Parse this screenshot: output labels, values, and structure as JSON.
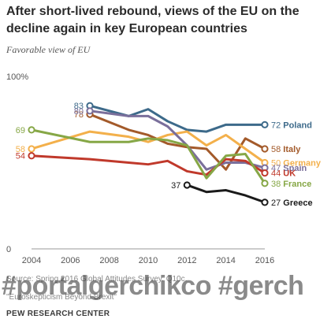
{
  "header": {
    "title": "After short-lived rebound, views of the EU on the decline again in key European countries",
    "subtitle": "Favorable view of EU"
  },
  "footer": {
    "source": "Source: Spring 2016 Global Attitudes Survey. Q10c.",
    "note": "\"Euroskepticism Beyond Brexit\"",
    "watermark": "#portalgerchikco #gerch",
    "org": "PEW RESEARCH CENTER"
  },
  "chart_data": {
    "type": "line",
    "ylim": [
      0,
      100
    ],
    "xlim": [
      2004,
      2016
    ],
    "y_tick_labels": [
      "0",
      "100%"
    ],
    "y_ticks": [
      0,
      100
    ],
    "x_ticks": [
      2004,
      2006,
      2008,
      2010,
      2012,
      2014,
      2016
    ],
    "grid": false,
    "series": [
      {
        "name": "Poland",
        "color": "#3d6a8a",
        "bold_label": true,
        "start_label": "83",
        "end_label": "72",
        "points": [
          [
            2007,
            83
          ],
          [
            2009,
            77
          ],
          [
            2010,
            81
          ],
          [
            2011,
            74
          ],
          [
            2012,
            69
          ],
          [
            2013,
            68
          ],
          [
            2014,
            72
          ],
          [
            2015,
            72
          ],
          [
            2016,
            72
          ]
        ]
      },
      {
        "name": "Italy",
        "color": "#a35a2a",
        "bold_label": false,
        "start_label": "78",
        "end_label": "58",
        "points": [
          [
            2007,
            78
          ],
          [
            2009,
            69
          ],
          [
            2010,
            66
          ],
          [
            2011,
            61
          ],
          [
            2012,
            59
          ],
          [
            2013,
            58
          ],
          [
            2014,
            46
          ],
          [
            2015,
            64
          ],
          [
            2016,
            58
          ]
        ]
      },
      {
        "name": "Germany",
        "color": "#f3b04b",
        "bold_label": false,
        "start_label": "58",
        "end_label": "50",
        "points": [
          [
            2004,
            58
          ],
          [
            2007,
            68
          ],
          [
            2009,
            65
          ],
          [
            2010,
            62
          ],
          [
            2011,
            66
          ],
          [
            2012,
            68
          ],
          [
            2013,
            60
          ],
          [
            2014,
            66
          ],
          [
            2015,
            58
          ],
          [
            2016,
            50
          ]
        ]
      },
      {
        "name": "Spain",
        "color": "#7a6f9b",
        "bold_label": false,
        "start_label": "80",
        "end_label": "47",
        "points": [
          [
            2007,
            80
          ],
          [
            2009,
            77
          ],
          [
            2010,
            77
          ],
          [
            2011,
            71
          ],
          [
            2012,
            60
          ],
          [
            2013,
            46
          ],
          [
            2014,
            50
          ],
          [
            2015,
            50
          ],
          [
            2016,
            47
          ]
        ]
      },
      {
        "name": "UK",
        "color": "#c0392b",
        "bold_label": false,
        "start_label": "54",
        "end_label": "44",
        "points": [
          [
            2004,
            54
          ],
          [
            2007,
            52
          ],
          [
            2009,
            50
          ],
          [
            2010,
            49
          ],
          [
            2011,
            51
          ],
          [
            2012,
            45
          ],
          [
            2013,
            43
          ],
          [
            2014,
            52
          ],
          [
            2015,
            51
          ],
          [
            2016,
            44
          ]
        ]
      },
      {
        "name": "France",
        "color": "#86a746",
        "bold_label": false,
        "start_label": "69",
        "end_label": "38",
        "points": [
          [
            2004,
            69
          ],
          [
            2007,
            62
          ],
          [
            2009,
            62
          ],
          [
            2010,
            64
          ],
          [
            2011,
            63
          ],
          [
            2012,
            60
          ],
          [
            2013,
            41
          ],
          [
            2014,
            54
          ],
          [
            2015,
            55
          ],
          [
            2016,
            38
          ]
        ]
      },
      {
        "name": "Greece",
        "color": "#1a1a1a",
        "bold_label": true,
        "start_label": "37",
        "end_label": "27",
        "points": [
          [
            2012,
            37
          ],
          [
            2013,
            33
          ],
          [
            2014,
            34
          ],
          [
            2015,
            31
          ],
          [
            2016,
            27
          ]
        ]
      }
    ]
  }
}
